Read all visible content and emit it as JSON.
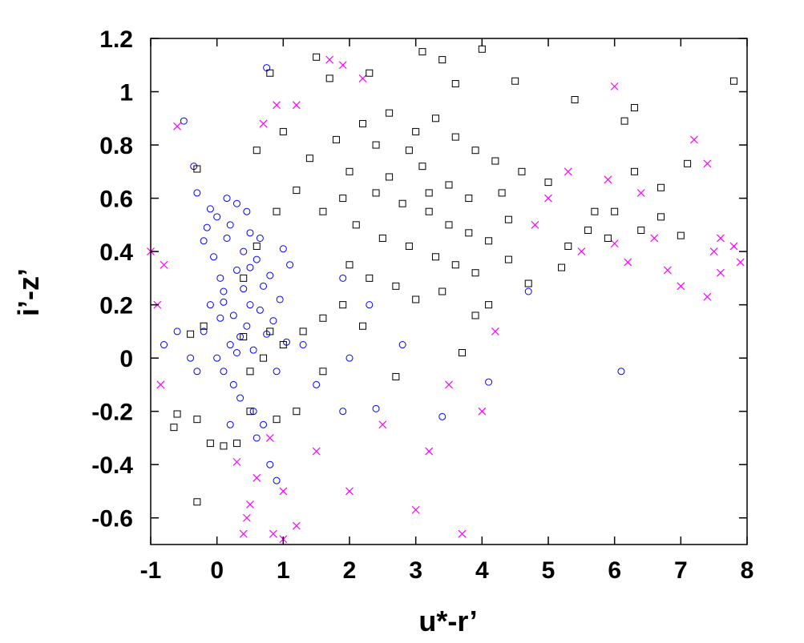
{
  "chart_data": {
    "type": "scatter",
    "title": "",
    "xlabel": "u*-r’",
    "ylabel": "i’-z’",
    "xlim": [
      -1,
      8
    ],
    "ylim": [
      -0.7,
      1.2
    ],
    "xticks": [
      "-1",
      "0",
      "1",
      "2",
      "3",
      "4",
      "5",
      "6",
      "7",
      "8"
    ],
    "yticks": [
      "-0.6",
      "-0.4",
      "-0.2",
      "0",
      "0.2",
      "0.4",
      "0.6",
      "0.8",
      "1",
      "1.2"
    ],
    "grid": false,
    "legend": "none",
    "series": [
      {
        "marker": "open-circle",
        "color": "#0000ff",
        "points": [
          [
            -0.5,
            0.89
          ],
          [
            -0.35,
            0.72
          ],
          [
            -0.3,
            0.62
          ],
          [
            -0.2,
            0.44
          ],
          [
            -0.15,
            0.49
          ],
          [
            -0.1,
            0.56
          ],
          [
            -0.05,
            0.38
          ],
          [
            0.0,
            0.53
          ],
          [
            0.05,
            0.3
          ],
          [
            0.1,
            0.21
          ],
          [
            0.15,
            0.45
          ],
          [
            0.2,
            0.5
          ],
          [
            0.25,
            0.16
          ],
          [
            0.3,
            0.33
          ],
          [
            0.35,
            0.08
          ],
          [
            0.4,
            0.26
          ],
          [
            0.45,
            0.12
          ],
          [
            0.5,
            0.2
          ],
          [
            0.55,
            0.03
          ],
          [
            0.6,
            0.37
          ],
          [
            0.65,
            0.18
          ],
          [
            0.7,
            0.27
          ],
          [
            0.75,
            0.09
          ],
          [
            0.8,
            0.31
          ],
          [
            0.85,
            0.14
          ],
          [
            0.9,
            -0.05
          ],
          [
            0.95,
            0.22
          ],
          [
            1.0,
            0.41
          ],
          [
            1.05,
            0.06
          ],
          [
            1.1,
            0.35
          ],
          [
            -0.2,
            0.1
          ],
          [
            -0.1,
            0.2
          ],
          [
            0.0,
            0.0
          ],
          [
            0.05,
            0.15
          ],
          [
            0.1,
            -0.05
          ],
          [
            0.2,
            0.05
          ],
          [
            0.25,
            -0.1
          ],
          [
            0.3,
            0.02
          ],
          [
            0.35,
            -0.15
          ],
          [
            0.4,
            0.4
          ],
          [
            0.5,
            0.47
          ],
          [
            0.55,
            -0.2
          ],
          [
            0.6,
            -0.3
          ],
          [
            0.7,
            -0.25
          ],
          [
            0.8,
            -0.4
          ],
          [
            0.9,
            -0.46
          ],
          [
            -0.8,
            0.05
          ],
          [
            -0.6,
            0.1
          ],
          [
            -0.4,
            0.0
          ],
          [
            -0.3,
            -0.05
          ],
          [
            0.2,
            -0.25
          ],
          [
            0.45,
            0.55
          ],
          [
            0.3,
            0.58
          ],
          [
            0.15,
            0.6
          ],
          [
            1.3,
            0.05
          ],
          [
            1.5,
            -0.1
          ],
          [
            1.9,
            -0.2
          ],
          [
            2.0,
            0.0
          ],
          [
            2.4,
            -0.19
          ],
          [
            2.8,
            0.05
          ],
          [
            3.4,
            -0.22
          ],
          [
            4.1,
            -0.09
          ],
          [
            4.7,
            0.25
          ],
          [
            6.1,
            -0.05
          ],
          [
            1.9,
            0.3
          ],
          [
            2.3,
            0.2
          ],
          [
            0.75,
            1.09
          ],
          [
            0.5,
            0.34
          ],
          [
            0.1,
            0.25
          ],
          [
            0.65,
            0.45
          ]
        ]
      },
      {
        "marker": "cross",
        "color": "#ff00ff",
        "points": [
          [
            -0.6,
            0.87
          ],
          [
            -1.0,
            0.4
          ],
          [
            -0.9,
            0.2
          ],
          [
            -0.85,
            -0.1
          ],
          [
            -0.8,
            0.35
          ],
          [
            0.3,
            -0.39
          ],
          [
            0.5,
            -0.55
          ],
          [
            0.45,
            -0.6
          ],
          [
            0.85,
            -0.66
          ],
          [
            0.4,
            -0.66
          ],
          [
            1.0,
            -0.68
          ],
          [
            1.2,
            -0.63
          ],
          [
            3.0,
            -0.57
          ],
          [
            3.7,
            -0.66
          ],
          [
            2.5,
            -0.25
          ],
          [
            3.2,
            -0.35
          ],
          [
            6.0,
            1.02
          ],
          [
            7.2,
            0.82
          ],
          [
            7.4,
            0.73
          ],
          [
            7.5,
            0.4
          ],
          [
            7.6,
            0.45
          ],
          [
            7.8,
            0.42
          ],
          [
            7.9,
            0.36
          ],
          [
            7.6,
            0.32
          ],
          [
            7.4,
            0.23
          ],
          [
            7.0,
            0.27
          ],
          [
            6.8,
            0.33
          ],
          [
            6.6,
            0.45
          ],
          [
            6.2,
            0.36
          ],
          [
            1.7,
            1.12
          ],
          [
            1.9,
            1.1
          ],
          [
            2.2,
            1.05
          ],
          [
            1.2,
            0.95
          ],
          [
            0.7,
            0.88
          ],
          [
            0.9,
            0.95
          ],
          [
            5.9,
            0.67
          ],
          [
            6.4,
            0.62
          ],
          [
            5.3,
            0.7
          ],
          [
            5.0,
            0.6
          ],
          [
            4.8,
            0.5
          ],
          [
            5.5,
            0.4
          ],
          [
            6.0,
            0.43
          ],
          [
            4.2,
            0.1
          ],
          [
            4.0,
            -0.2
          ],
          [
            3.5,
            -0.1
          ],
          [
            2.0,
            -0.5
          ],
          [
            1.5,
            -0.35
          ],
          [
            1.0,
            -0.5
          ],
          [
            0.8,
            -0.3
          ],
          [
            0.6,
            -0.45
          ]
        ]
      },
      {
        "marker": "open-square",
        "color": "#000000",
        "points": [
          [
            1.5,
            1.13
          ],
          [
            3.1,
            1.15
          ],
          [
            3.4,
            1.12
          ],
          [
            4.0,
            1.16
          ],
          [
            2.3,
            1.07
          ],
          [
            0.8,
            1.07
          ],
          [
            1.7,
            1.05
          ],
          [
            7.8,
            1.04
          ],
          [
            3.6,
            1.03
          ],
          [
            4.5,
            1.04
          ],
          [
            6.3,
            0.94
          ],
          [
            6.15,
            0.89
          ],
          [
            5.4,
            0.97
          ],
          [
            1.0,
            0.85
          ],
          [
            0.6,
            0.78
          ],
          [
            -0.3,
            0.71
          ],
          [
            7.1,
            0.73
          ],
          [
            6.7,
            0.64
          ],
          [
            6.3,
            0.7
          ],
          [
            6.0,
            0.55
          ],
          [
            6.7,
            0.53
          ],
          [
            7.0,
            0.46
          ],
          [
            6.4,
            0.48
          ],
          [
            5.7,
            0.55
          ],
          [
            5.6,
            0.48
          ],
          [
            5.9,
            0.45
          ],
          [
            5.2,
            0.34
          ],
          [
            5.3,
            0.42
          ],
          [
            4.7,
            0.28
          ],
          [
            4.4,
            0.37
          ],
          [
            4.1,
            0.2
          ],
          [
            3.9,
            0.16
          ],
          [
            3.7,
            0.02
          ],
          [
            2.7,
            -0.07
          ],
          [
            1.6,
            -0.05
          ],
          [
            1.2,
            -0.2
          ],
          [
            0.9,
            -0.23
          ],
          [
            0.5,
            -0.2
          ],
          [
            0.3,
            -0.32
          ],
          [
            0.1,
            -0.33
          ],
          [
            -0.1,
            -0.32
          ],
          [
            -0.3,
            -0.23
          ],
          [
            -0.6,
            -0.21
          ],
          [
            -0.65,
            -0.26
          ],
          [
            -0.3,
            -0.54
          ],
          [
            -0.4,
            0.09
          ],
          [
            -0.2,
            0.12
          ],
          [
            0.4,
            0.3
          ],
          [
            0.6,
            0.42
          ],
          [
            0.9,
            0.55
          ],
          [
            1.2,
            0.63
          ],
          [
            1.4,
            0.75
          ],
          [
            1.8,
            0.82
          ],
          [
            2.2,
            0.88
          ],
          [
            2.6,
            0.92
          ],
          [
            3.0,
            0.85
          ],
          [
            3.3,
            0.9
          ],
          [
            3.6,
            0.83
          ],
          [
            3.9,
            0.78
          ],
          [
            4.2,
            0.74
          ],
          [
            4.6,
            0.7
          ],
          [
            5.0,
            0.66
          ],
          [
            2.0,
            0.7
          ],
          [
            2.4,
            0.62
          ],
          [
            2.8,
            0.58
          ],
          [
            3.2,
            0.55
          ],
          [
            3.5,
            0.5
          ],
          [
            3.8,
            0.47
          ],
          [
            4.1,
            0.44
          ],
          [
            4.4,
            0.52
          ],
          [
            2.1,
            0.5
          ],
          [
            2.5,
            0.45
          ],
          [
            2.9,
            0.42
          ],
          [
            3.3,
            0.38
          ],
          [
            3.6,
            0.35
          ],
          [
            3.9,
            0.32
          ],
          [
            2.0,
            0.35
          ],
          [
            2.3,
            0.3
          ],
          [
            2.7,
            0.27
          ],
          [
            3.0,
            0.22
          ],
          [
            3.4,
            0.25
          ],
          [
            1.6,
            0.55
          ],
          [
            1.9,
            0.6
          ],
          [
            2.6,
            0.68
          ],
          [
            3.1,
            0.72
          ],
          [
            3.5,
            0.65
          ],
          [
            3.8,
            0.6
          ],
          [
            4.3,
            0.62
          ],
          [
            1.3,
            0.1
          ],
          [
            1.6,
            0.15
          ],
          [
            1.9,
            0.2
          ],
          [
            2.2,
            0.12
          ],
          [
            1.0,
            0.05
          ],
          [
            0.7,
            0.0
          ],
          [
            0.5,
            -0.05
          ],
          [
            0.4,
            0.08
          ],
          [
            0.8,
            0.1
          ],
          [
            2.4,
            0.8
          ],
          [
            2.9,
            0.78
          ],
          [
            3.2,
            0.62
          ]
        ]
      }
    ]
  }
}
